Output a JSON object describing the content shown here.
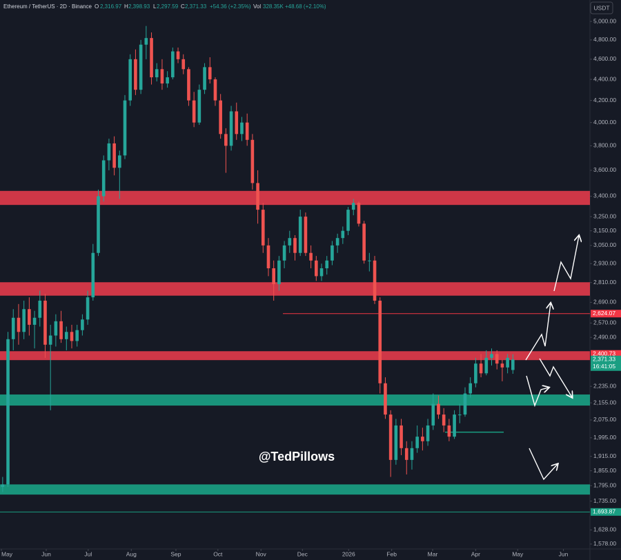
{
  "chart_data": {
    "type": "candlestick",
    "header": {
      "symbol": "Ethereum / TetherUS · 2D · Binance",
      "open_label": "O",
      "open": "2,316.97",
      "high_label": "H",
      "high": "2,398.93",
      "low_label": "L",
      "low": "2,297.59",
      "close_label": "C",
      "close": "2,371.33",
      "change": "+54.36 (+2.35%)",
      "volume_label": "Vol",
      "volume": "328.35K",
      "volume_change": "+48.68 (+2.10%)"
    },
    "currency": "USDT",
    "watermark": "@TedPillows",
    "log_scale": true,
    "up_color": "#26a69a",
    "down_color": "#ef5350",
    "ylim": [
      1561,
      5242
    ],
    "yticks": [
      {
        "value": 5000,
        "label": "5,000.00"
      },
      {
        "value": 4800,
        "label": "4,800.00"
      },
      {
        "value": 4600,
        "label": "4,600.00"
      },
      {
        "value": 4400,
        "label": "4,400.00"
      },
      {
        "value": 4200,
        "label": "4,200.00"
      },
      {
        "value": 4000,
        "label": "4,000.00"
      },
      {
        "value": 3800,
        "label": "3,800.00"
      },
      {
        "value": 3600,
        "label": "3,600.00"
      },
      {
        "value": 3400,
        "label": "3,400.00"
      },
      {
        "value": 3250,
        "label": "3,250.00"
      },
      {
        "value": 3150,
        "label": "3,150.00"
      },
      {
        "value": 3050,
        "label": "3,050.00"
      },
      {
        "value": 2930,
        "label": "2,930.00"
      },
      {
        "value": 2810,
        "label": "2,810.00"
      },
      {
        "value": 2690,
        "label": "2,690.00"
      },
      {
        "value": 2570,
        "label": "2,570.00"
      },
      {
        "value": 2490,
        "label": "2,490.00"
      },
      {
        "value": 2235,
        "label": "2,235.00"
      },
      {
        "value": 2155,
        "label": "2,155.00"
      },
      {
        "value": 2075,
        "label": "2,075.00"
      },
      {
        "value": 1995,
        "label": "1,995.00"
      },
      {
        "value": 1915,
        "label": "1,915.00"
      },
      {
        "value": 1855,
        "label": "1,855.00"
      },
      {
        "value": 1795,
        "label": "1,795.00"
      },
      {
        "value": 1735,
        "label": "1,735.00"
      },
      {
        "value": 1628,
        "label": "1,628.00"
      },
      {
        "value": 1578,
        "label": "1,578.00"
      }
    ],
    "xlim": [
      -0.5,
      110.5
    ],
    "xticks": [
      {
        "value": -0.5,
        "label": "May"
      },
      {
        "value": 8.2,
        "label": "Jun"
      },
      {
        "value": 16.1,
        "label": "Jul"
      },
      {
        "value": 24.2,
        "label": "Aug"
      },
      {
        "value": 32.6,
        "label": "Sep"
      },
      {
        "value": 40.5,
        "label": "Oct"
      },
      {
        "value": 48.6,
        "label": "Nov"
      },
      {
        "value": 56.4,
        "label": "Dec"
      },
      {
        "value": 65.1,
        "label": "2026"
      },
      {
        "value": 73.2,
        "label": "Feb"
      },
      {
        "value": 80.9,
        "label": "Mar"
      },
      {
        "value": 89,
        "label": "Apr"
      },
      {
        "value": 96.9,
        "label": "May"
      },
      {
        "value": 105.5,
        "label": "Jun"
      }
    ],
    "zones": [
      {
        "low": 3335,
        "high": 3440,
        "color": "#e03a4a"
      },
      {
        "low": 2730,
        "high": 2812,
        "color": "#e03a4a"
      },
      {
        "low": 2368,
        "high": 2415,
        "color": "#e03a4a"
      },
      {
        "low": 2142,
        "high": 2195,
        "color": "#1a9e82"
      },
      {
        "low": 1760,
        "high": 1800,
        "color": "#1a9e82"
      }
    ],
    "support_line": 2020,
    "price_labels": [
      {
        "value": 2624.07,
        "label": "2,624.07",
        "color": "#f23645"
      },
      {
        "value": 2400.73,
        "label": "2,400.73",
        "color": "#f23645"
      },
      {
        "value": 2371.33,
        "label": "2,371.33",
        "time": "16:41:05",
        "color": "#1a9e82"
      },
      {
        "value": 1693.87,
        "label": "1,693.87",
        "color": "#1a9e82"
      }
    ],
    "candles": [
      [
        1790,
        1830,
        1770,
        1800
      ],
      [
        1800,
        2520,
        1790,
        2480
      ],
      [
        2480,
        2650,
        2420,
        2600
      ],
      [
        2600,
        2680,
        2450,
        2520
      ],
      [
        2520,
        2700,
        2480,
        2650
      ],
      [
        2650,
        2720,
        2500,
        2560
      ],
      [
        2560,
        2640,
        2430,
        2600
      ],
      [
        2600,
        2760,
        2550,
        2700
      ],
      [
        2700,
        2740,
        2380,
        2450
      ],
      [
        2450,
        2560,
        2120,
        2500
      ],
      [
        2500,
        2620,
        2440,
        2580
      ],
      [
        2580,
        2640,
        2460,
        2480
      ],
      [
        2480,
        2550,
        2420,
        2520
      ],
      [
        2520,
        2560,
        2430,
        2470
      ],
      [
        2470,
        2560,
        2440,
        2530
      ],
      [
        2530,
        2620,
        2500,
        2590
      ],
      [
        2590,
        2760,
        2560,
        2720
      ],
      [
        2720,
        3060,
        2700,
        3000
      ],
      [
        3000,
        3450,
        2980,
        3400
      ],
      [
        3400,
        3720,
        3360,
        3680
      ],
      [
        3680,
        3860,
        3600,
        3820
      ],
      [
        3820,
        3880,
        3560,
        3620
      ],
      [
        3620,
        3760,
        3380,
        3720
      ],
      [
        3720,
        4250,
        3690,
        4200
      ],
      [
        4200,
        4650,
        4150,
        4600
      ],
      [
        4600,
        4700,
        4250,
        4300
      ],
      [
        4300,
        4800,
        4260,
        4750
      ],
      [
        4750,
        4950,
        4600,
        4820
      ],
      [
        4820,
        4880,
        4350,
        4420
      ],
      [
        4420,
        4560,
        4380,
        4500
      ],
      [
        4500,
        4600,
        4300,
        4360
      ],
      [
        4360,
        4480,
        4320,
        4420
      ],
      [
        4420,
        4720,
        4400,
        4680
      ],
      [
        4680,
        4720,
        4560,
        4600
      ],
      [
        4600,
        4650,
        4450,
        4500
      ],
      [
        4500,
        4520,
        4150,
        4200
      ],
      [
        4200,
        4280,
        3960,
        4000
      ],
      [
        4000,
        4350,
        3980,
        4300
      ],
      [
        4300,
        4560,
        4260,
        4520
      ],
      [
        4520,
        4620,
        4360,
        4400
      ],
      [
        4400,
        4420,
        4150,
        4200
      ],
      [
        4200,
        4260,
        3860,
        3900
      ],
      [
        3900,
        3950,
        3580,
        3800
      ],
      [
        3800,
        4150,
        3760,
        4100
      ],
      [
        4100,
        4180,
        3850,
        3900
      ],
      [
        3900,
        4050,
        3840,
        4000
      ],
      [
        4000,
        4080,
        3800,
        3850
      ],
      [
        3850,
        3900,
        3450,
        3500
      ],
      [
        3500,
        3600,
        3200,
        3300
      ],
      [
        3300,
        3350,
        3000,
        3050
      ],
      [
        3050,
        3100,
        2850,
        2900
      ],
      [
        2900,
        2950,
        2700,
        2800
      ],
      [
        2800,
        2980,
        2760,
        2950
      ],
      [
        2950,
        3080,
        2900,
        3050
      ],
      [
        3050,
        3150,
        3000,
        3100
      ],
      [
        3100,
        3120,
        2950,
        3000
      ],
      [
        3000,
        3300,
        2980,
        3250
      ],
      [
        3250,
        3280,
        2980,
        3000
      ],
      [
        3000,
        3050,
        2900,
        2950
      ],
      [
        2950,
        2980,
        2820,
        2850
      ],
      [
        2850,
        2930,
        2820,
        2900
      ],
      [
        2900,
        2980,
        2860,
        2950
      ],
      [
        2950,
        3080,
        2920,
        3050
      ],
      [
        3050,
        3130,
        3000,
        3100
      ],
      [
        3100,
        3180,
        3060,
        3150
      ],
      [
        3150,
        3320,
        3120,
        3300
      ],
      [
        3300,
        3380,
        3260,
        3350
      ],
      [
        3350,
        3360,
        3180,
        3200
      ],
      [
        3200,
        3220,
        2930,
        2950
      ],
      [
        2950,
        3000,
        2880,
        2950
      ],
      [
        2950,
        2980,
        2680,
        2700
      ],
      [
        2700,
        2720,
        2200,
        2250
      ],
      [
        2250,
        2280,
        2080,
        2100
      ],
      [
        2100,
        2120,
        1830,
        1900
      ],
      [
        1900,
        2080,
        1880,
        2050
      ],
      [
        2050,
        2080,
        1920,
        1950
      ],
      [
        1950,
        1980,
        1840,
        1900
      ],
      [
        1900,
        1980,
        1860,
        1950
      ],
      [
        1950,
        2050,
        1930,
        2000
      ],
      [
        2000,
        2040,
        1940,
        1980
      ],
      [
        1980,
        2080,
        1960,
        2050
      ],
      [
        2050,
        2200,
        2030,
        2150
      ],
      [
        2150,
        2190,
        2080,
        2100
      ],
      [
        2100,
        2130,
        2020,
        2050
      ],
      [
        2050,
        2080,
        1980,
        2000
      ],
      [
        2000,
        2120,
        1990,
        2100
      ],
      [
        2100,
        2150,
        2060,
        2100
      ],
      [
        2100,
        2230,
        2090,
        2200
      ],
      [
        2200,
        2280,
        2180,
        2250
      ],
      [
        2250,
        2380,
        2230,
        2350
      ],
      [
        2350,
        2400,
        2280,
        2300
      ],
      [
        2300,
        2420,
        2290,
        2380
      ],
      [
        2380,
        2430,
        2340,
        2400
      ],
      [
        2400,
        2420,
        2320,
        2350
      ],
      [
        2350,
        2370,
        2260,
        2330
      ],
      [
        2330,
        2400,
        2300,
        2380
      ],
      [
        2316.97,
        2398.93,
        2297.59,
        2371.33
      ]
    ]
  }
}
